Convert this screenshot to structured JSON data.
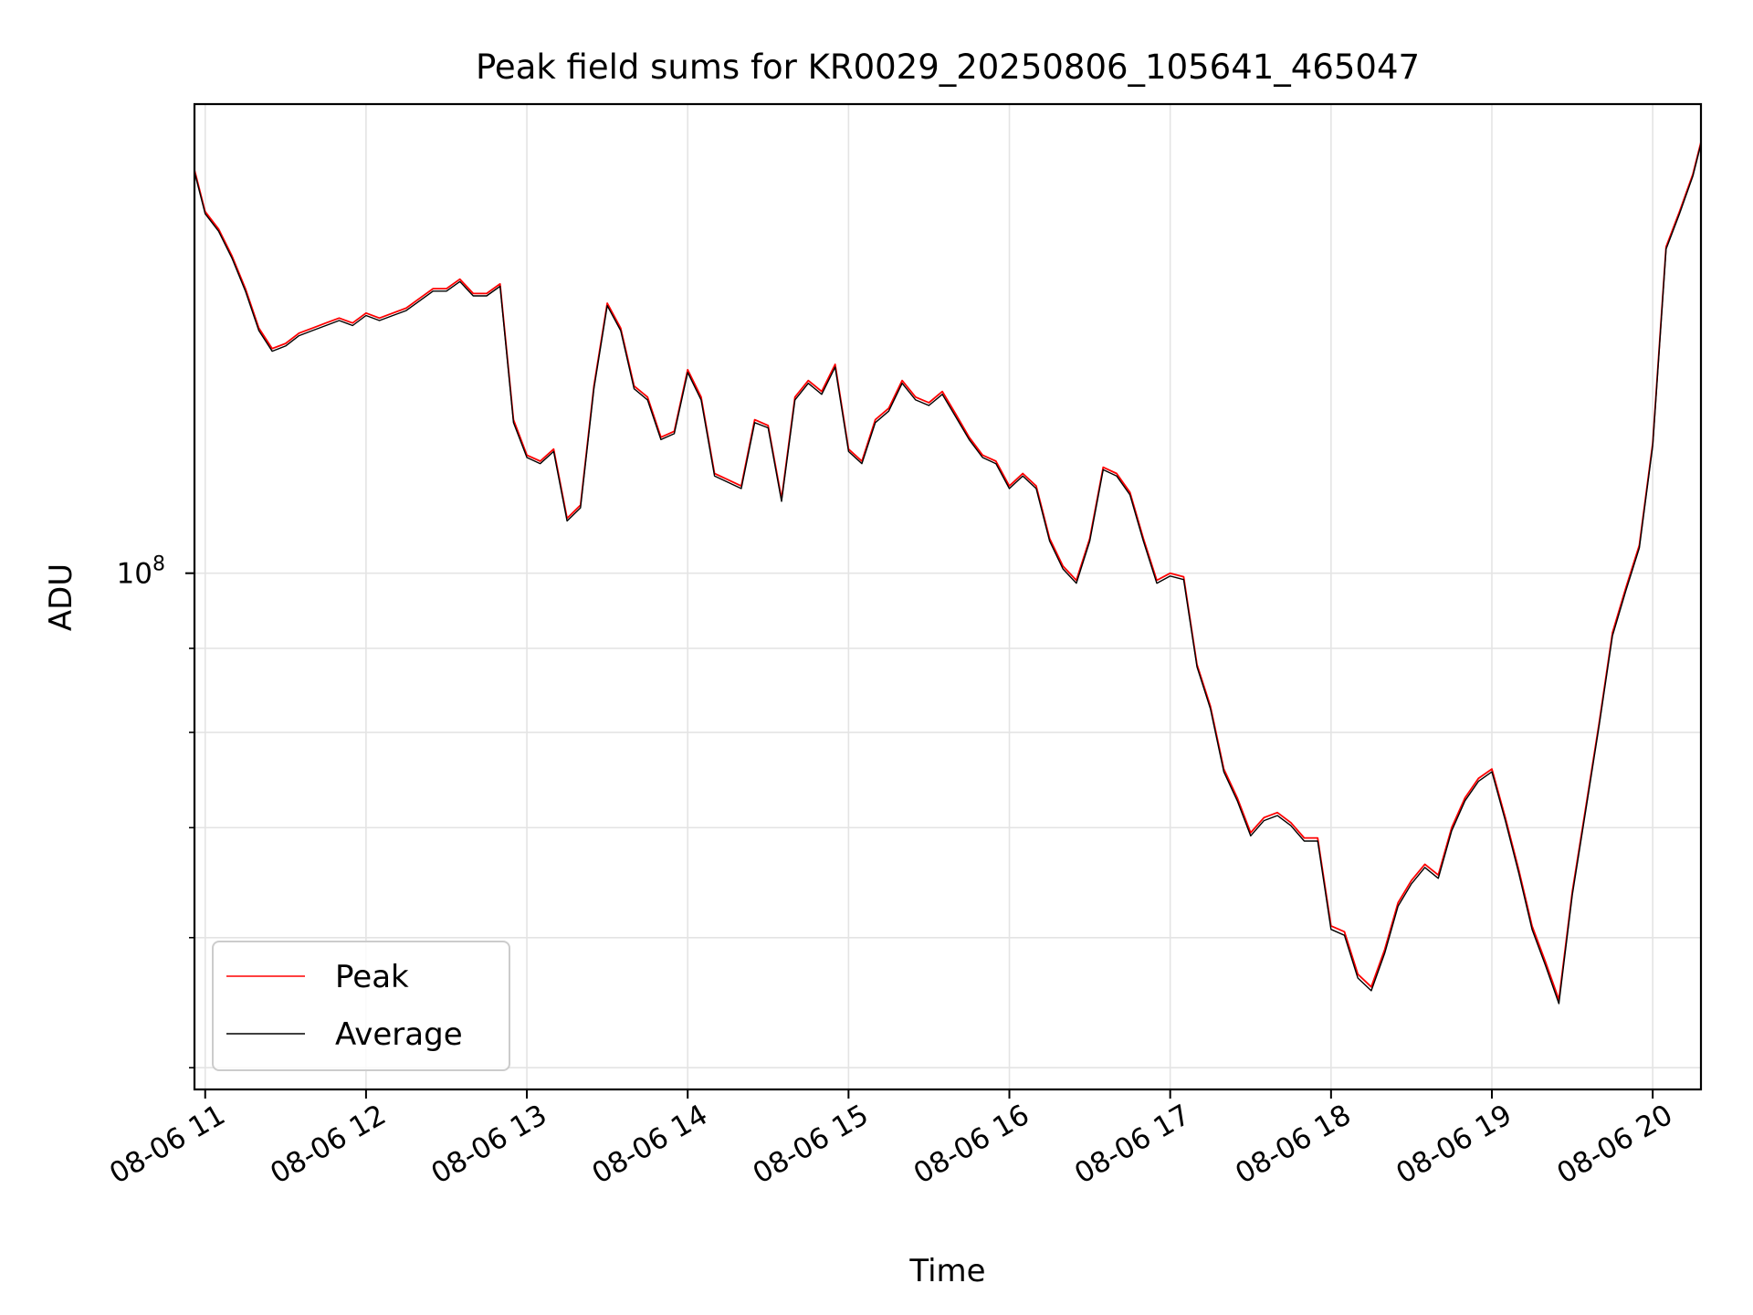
{
  "chart_data": {
    "type": "line",
    "title": "Peak field sums for KR0029_20250806_105641_465047",
    "xlabel": "Time",
    "ylabel": "ADU",
    "x_ticks": [
      "08-06 11",
      "08-06 12",
      "08-06 13",
      "08-06 14",
      "08-06 15",
      "08-06 16",
      "08-06 17",
      "08-06 18",
      "08-06 19",
      "08-06 20"
    ],
    "y_ticks": [
      {
        "label": "10",
        "exponent": "8",
        "value": 100000000
      }
    ],
    "y_minor_ticks": [
      50000000,
      60000000,
      70000000,
      80000000,
      90000000,
      200000000
    ],
    "xlim": [
      "2025-08-06 10:56",
      "2025-08-06 20:18"
    ],
    "ylim": [
      48500000,
      193000000
    ],
    "y_scale": "log",
    "grid": true,
    "legend": {
      "position": "lower-left",
      "entries": [
        "Peak",
        "Average"
      ]
    },
    "colors": {
      "Peak": "#ff0000",
      "Average": "#000000"
    },
    "x": [
      "2025-08-06 10:56",
      "2025-08-06 11:00",
      "2025-08-06 11:05",
      "2025-08-06 11:10",
      "2025-08-06 11:15",
      "2025-08-06 11:20",
      "2025-08-06 11:25",
      "2025-08-06 11:30",
      "2025-08-06 11:35",
      "2025-08-06 11:40",
      "2025-08-06 11:45",
      "2025-08-06 11:50",
      "2025-08-06 11:55",
      "2025-08-06 12:00",
      "2025-08-06 12:05",
      "2025-08-06 12:10",
      "2025-08-06 12:15",
      "2025-08-06 12:20",
      "2025-08-06 12:25",
      "2025-08-06 12:30",
      "2025-08-06 12:35",
      "2025-08-06 12:40",
      "2025-08-06 12:45",
      "2025-08-06 12:50",
      "2025-08-06 12:55",
      "2025-08-06 13:00",
      "2025-08-06 13:05",
      "2025-08-06 13:10",
      "2025-08-06 13:15",
      "2025-08-06 13:20",
      "2025-08-06 13:25",
      "2025-08-06 13:30",
      "2025-08-06 13:35",
      "2025-08-06 13:40",
      "2025-08-06 13:45",
      "2025-08-06 13:50",
      "2025-08-06 13:55",
      "2025-08-06 14:00",
      "2025-08-06 14:05",
      "2025-08-06 14:10",
      "2025-08-06 14:15",
      "2025-08-06 14:20",
      "2025-08-06 14:25",
      "2025-08-06 14:30",
      "2025-08-06 14:35",
      "2025-08-06 14:40",
      "2025-08-06 14:45",
      "2025-08-06 14:50",
      "2025-08-06 14:55",
      "2025-08-06 15:00",
      "2025-08-06 15:05",
      "2025-08-06 15:10",
      "2025-08-06 15:15",
      "2025-08-06 15:20",
      "2025-08-06 15:25",
      "2025-08-06 15:30",
      "2025-08-06 15:35",
      "2025-08-06 15:40",
      "2025-08-06 15:45",
      "2025-08-06 15:50",
      "2025-08-06 15:55",
      "2025-08-06 16:00",
      "2025-08-06 16:05",
      "2025-08-06 16:10",
      "2025-08-06 16:15",
      "2025-08-06 16:20",
      "2025-08-06 16:25",
      "2025-08-06 16:30",
      "2025-08-06 16:35",
      "2025-08-06 16:40",
      "2025-08-06 16:45",
      "2025-08-06 16:50",
      "2025-08-06 16:55",
      "2025-08-06 17:00",
      "2025-08-06 17:05",
      "2025-08-06 17:10",
      "2025-08-06 17:15",
      "2025-08-06 17:20",
      "2025-08-06 17:25",
      "2025-08-06 17:30",
      "2025-08-06 17:35",
      "2025-08-06 17:40",
      "2025-08-06 17:45",
      "2025-08-06 17:50",
      "2025-08-06 17:55",
      "2025-08-06 18:00",
      "2025-08-06 18:05",
      "2025-08-06 18:10",
      "2025-08-06 18:15",
      "2025-08-06 18:20",
      "2025-08-06 18:25",
      "2025-08-06 18:30",
      "2025-08-06 18:35",
      "2025-08-06 18:40",
      "2025-08-06 18:45",
      "2025-08-06 18:50",
      "2025-08-06 18:55",
      "2025-08-06 19:00",
      "2025-08-06 19:05",
      "2025-08-06 19:10",
      "2025-08-06 19:15",
      "2025-08-06 19:20",
      "2025-08-06 19:25",
      "2025-08-06 19:30",
      "2025-08-06 19:35",
      "2025-08-06 19:40",
      "2025-08-06 19:45",
      "2025-08-06 19:50",
      "2025-08-06 19:55",
      "2025-08-06 20:00",
      "2025-08-06 20:05",
      "2025-08-06 20:10",
      "2025-08-06 20:15",
      "2025-08-06 20:18"
    ],
    "series": [
      {
        "name": "Peak",
        "values": [
          176000000,
          166000000,
          162000000,
          156000000,
          149000000,
          141000000,
          137000000,
          138000000,
          140000000,
          141000000,
          142000000,
          143000000,
          142000000,
          144000000,
          143000000,
          144000000,
          145000000,
          147000000,
          149000000,
          149000000,
          151000000,
          148000000,
          148000000,
          150000000,
          124000000,
          118000000,
          117000000,
          119000000,
          108000000,
          110000000,
          130000000,
          146000000,
          141000000,
          130000000,
          128000000,
          121000000,
          122000000,
          133000000,
          128000000,
          115000000,
          114000000,
          113000000,
          124000000,
          123000000,
          111000000,
          128000000,
          131000000,
          129000000,
          134000000,
          119000000,
          117000000,
          124000000,
          126000000,
          131000000,
          128000000,
          127000000,
          129000000,
          125000000,
          121000000,
          118000000,
          117000000,
          113000000,
          115000000,
          113000000,
          105000000,
          101000000,
          99000000,
          105000000,
          116000000,
          115000000,
          112000000,
          105000000,
          99000000,
          100000000,
          99500000,
          88000000,
          83000000,
          76000000,
          73000000,
          69500000,
          71000000,
          71500000,
          70500000,
          69000000,
          69000000,
          61000000,
          60500000,
          57000000,
          56000000,
          59000000,
          63000000,
          65000000,
          66500000,
          65500000,
          70000000,
          73000000,
          75000000,
          76000000,
          71000000,
          66000000,
          61000000,
          58000000,
          55000000,
          64000000,
          72000000,
          81000000,
          92000000,
          98000000,
          104000000,
          120000000,
          158000000,
          166000000,
          175000000,
          183000000
        ]
      },
      {
        "name": "Average",
        "values": [
          175500000,
          165500000,
          161500000,
          155500000,
          148500000,
          140500000,
          136500000,
          137500000,
          139500000,
          140500000,
          141500000,
          142500000,
          141500000,
          143500000,
          142500000,
          143500000,
          144500000,
          146500000,
          148500000,
          148500000,
          150500000,
          147500000,
          147500000,
          149500000,
          123500000,
          117600000,
          116600000,
          118600000,
          107600000,
          109600000,
          129500000,
          145500000,
          140500000,
          129500000,
          127500000,
          120600000,
          121600000,
          132500000,
          127500000,
          114600000,
          113600000,
          112600000,
          123500000,
          122600000,
          110600000,
          127500000,
          130500000,
          128500000,
          133500000,
          118600000,
          116600000,
          123500000,
          125500000,
          130500000,
          127500000,
          126500000,
          128500000,
          124500000,
          120600000,
          117600000,
          116600000,
          112600000,
          114600000,
          112600000,
          104600000,
          100600000,
          98600000,
          104600000,
          115600000,
          114600000,
          111600000,
          104600000,
          98600000,
          99600000,
          99100000,
          87700000,
          82700000,
          75700000,
          72700000,
          69200000,
          70700000,
          71200000,
          70200000,
          68700000,
          68700000,
          60700000,
          60200000,
          56700000,
          55700000,
          58700000,
          62700000,
          64700000,
          66200000,
          65200000,
          69700000,
          72700000,
          74700000,
          75700000,
          70700000,
          65700000,
          60700000,
          57700000,
          54700000,
          63700000,
          71700000,
          80700000,
          91600000,
          97600000,
          103600000,
          119600000,
          157500000,
          165500000,
          174500000,
          182500000
        ]
      }
    ]
  }
}
